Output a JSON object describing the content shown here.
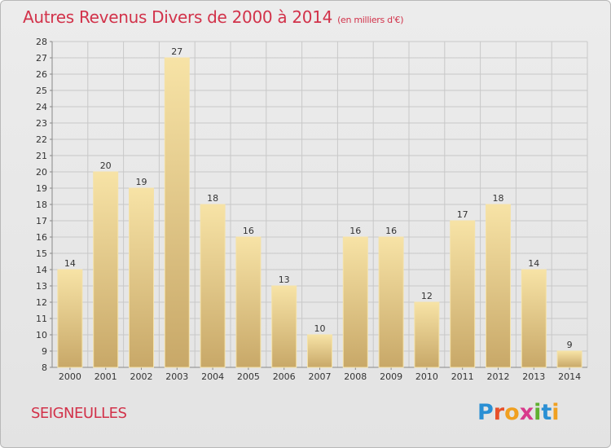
{
  "title": "Autres Revenus Divers de 2000 à 2014",
  "unit": "(en milliers d'€)",
  "commune": "SEIGNEULLES",
  "logo": {
    "letters": [
      "P",
      "r",
      "o",
      "x",
      "i",
      "t",
      "i"
    ],
    "colors": [
      "#2a8fd4",
      "#e8502a",
      "#f0a020",
      "#d83a8c",
      "#60b030",
      "#2a8fd4",
      "#f0a020"
    ]
  },
  "colors": {
    "title": "#d2324a",
    "bar_light": "#f7e3a6",
    "bar_dark": "#c8a868",
    "grid": "#c8c8c8",
    "axis_text": "#333333"
  },
  "chart_data": {
    "type": "bar",
    "title": "Autres Revenus Divers de 2000 à 2014",
    "categories": [
      "2000",
      "2001",
      "2002",
      "2003",
      "2004",
      "2005",
      "2006",
      "2007",
      "2008",
      "2009",
      "2010",
      "2011",
      "2012",
      "2013",
      "2014"
    ],
    "values": [
      14,
      20,
      19,
      27,
      18,
      16,
      13,
      10,
      16,
      16,
      12,
      17,
      18,
      14,
      9
    ],
    "ylim": [
      8,
      28
    ],
    "yticks": [
      8,
      9,
      10,
      11,
      12,
      13,
      14,
      15,
      16,
      17,
      18,
      19,
      20,
      21,
      22,
      23,
      24,
      25,
      26,
      27,
      28
    ],
    "xlabel": "",
    "ylabel": "",
    "grid": true
  }
}
